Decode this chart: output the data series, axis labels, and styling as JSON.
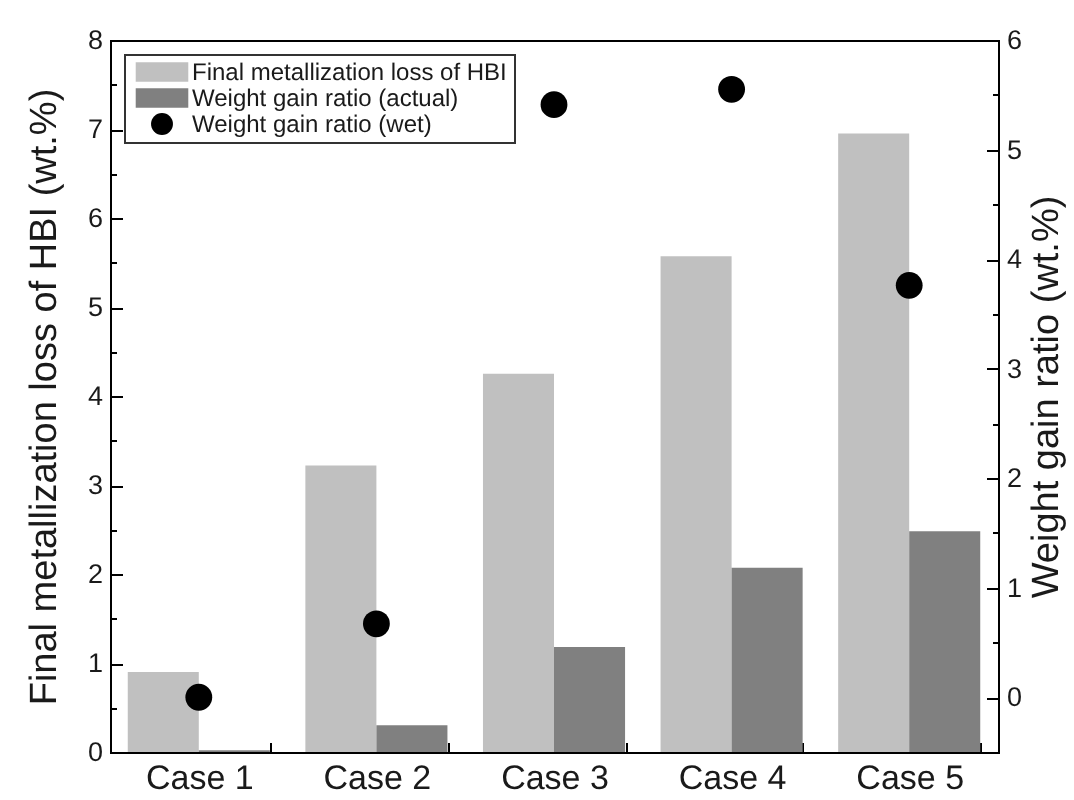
{
  "chart_data": {
    "type": "bar",
    "categories": [
      "Case 1",
      "Case 2",
      "Case 3",
      "Case 4",
      "Case 5"
    ],
    "ylabel": "Final metallization loss of HBI (wt.%)",
    "y2label": "Weight gain ratio (wt.%)",
    "ylim": [
      0,
      8
    ],
    "yticks": [
      0,
      {
        "value": 0.5,
        "label": null
      },
      1,
      {
        "value": 1.5,
        "label": null
      },
      2,
      {
        "value": 2.5,
        "label": null
      },
      3,
      {
        "value": 3.5,
        "label": null
      },
      4,
      {
        "value": 4.5,
        "label": null
      },
      5,
      {
        "value": 5.5,
        "label": null
      },
      6,
      {
        "value": 6.5,
        "label": null
      },
      7,
      {
        "value": 7.5,
        "label": null
      },
      8
    ],
    "y2lim": [
      -0.5,
      6
    ],
    "y2ticks": [
      0,
      {
        "value": 0.5,
        "label": null
      },
      1,
      {
        "value": 1.5,
        "label": null
      },
      2,
      {
        "value": 2.5,
        "label": null
      },
      3,
      {
        "value": 3.5,
        "label": null
      },
      4,
      {
        "value": 4.5,
        "label": null
      },
      5,
      {
        "value": 5.5,
        "label": null
      },
      6
    ],
    "series": [
      {
        "name": "Final metallization loss of HBI",
        "color": "#c0c0c0",
        "values": [
          0.9,
          3.22,
          4.25,
          5.57,
          6.95
        ]
      },
      {
        "name": "Weight gain ratio (actual)",
        "color": "#808080",
        "values": [
          0.02,
          0.3,
          1.18,
          2.07,
          2.48
        ]
      },
      {
        "name": "Weight gain ratio (wet)",
        "type": "scatter",
        "axis": "y2",
        "color": "#000000",
        "values": [
          0.0,
          0.67,
          5.41,
          5.55,
          3.76
        ]
      }
    ],
    "legend": "top left",
    "marker": "circle"
  }
}
